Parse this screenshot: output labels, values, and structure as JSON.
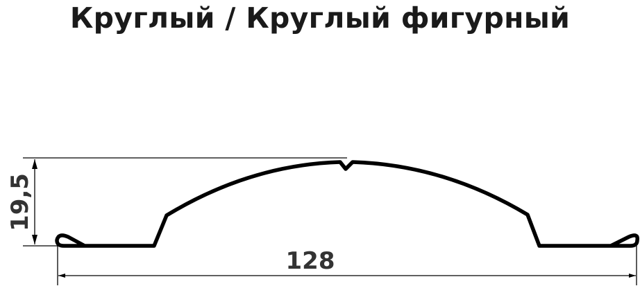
{
  "title": "Круглый / Круглый фигурный",
  "dimensions": {
    "height": "19,5",
    "width": "128"
  },
  "colors": {
    "profile": "#000000",
    "text": "#1a1a1a"
  }
}
